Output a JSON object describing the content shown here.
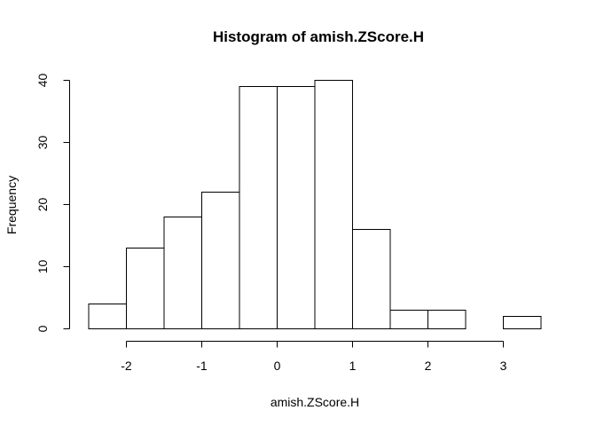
{
  "chart_data": {
    "type": "bar",
    "title": "Histogram of amish.ZScore.H",
    "xlabel": "amish.ZScore.H",
    "ylabel": "Frequency",
    "bins": [
      {
        "x0": -2.5,
        "x1": -2.0,
        "count": 4
      },
      {
        "x0": -2.0,
        "x1": -1.5,
        "count": 13
      },
      {
        "x0": -1.5,
        "x1": -1.0,
        "count": 18
      },
      {
        "x0": -1.0,
        "x1": -0.5,
        "count": 22
      },
      {
        "x0": -0.5,
        "x1": 0.0,
        "count": 39
      },
      {
        "x0": 0.0,
        "x1": 0.5,
        "count": 39
      },
      {
        "x0": 0.5,
        "x1": 1.0,
        "count": 40
      },
      {
        "x0": 1.0,
        "x1": 1.5,
        "count": 16
      },
      {
        "x0": 1.5,
        "x1": 2.0,
        "count": 3
      },
      {
        "x0": 2.0,
        "x1": 2.5,
        "count": 3
      },
      {
        "x0": 2.5,
        "x1": 3.0,
        "count": 0
      },
      {
        "x0": 3.0,
        "x1": 3.5,
        "count": 2
      }
    ],
    "xticks": [
      -2,
      -1,
      0,
      1,
      2,
      3
    ],
    "yticks": [
      0,
      10,
      20,
      30,
      40
    ],
    "xlim": [
      -2.5,
      3.5
    ],
    "ylim": [
      0,
      40
    ],
    "grid": false,
    "legend": "none"
  }
}
